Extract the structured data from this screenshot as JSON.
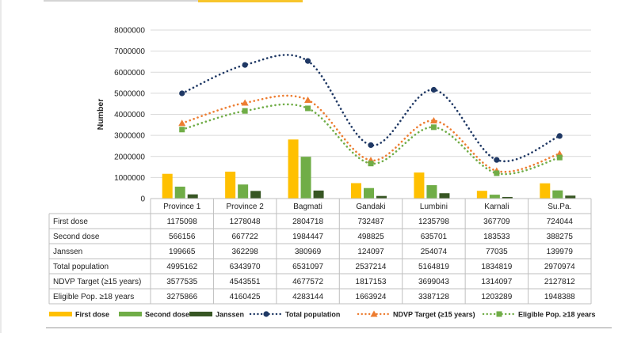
{
  "chart_data": {
    "type": "bar",
    "title": "",
    "xlabel": "",
    "ylabel": "Number",
    "ylim": [
      0,
      8000000
    ],
    "yticks": [
      0,
      1000000,
      2000000,
      3000000,
      4000000,
      5000000,
      6000000,
      7000000,
      8000000
    ],
    "ytick_labels": [
      "0",
      "1000000",
      "2000000",
      "3000000",
      "4000000",
      "5000000",
      "6000000",
      "7000000",
      "8000000"
    ],
    "grid": true,
    "legend_position": "bottom",
    "categories": [
      "Province 1",
      "Province 2",
      "Bagmati",
      "Gandaki",
      "Lumbini",
      "Karnali",
      "Su.Pa."
    ],
    "bar_series": [
      {
        "name": "First dose",
        "color": "#ffc000",
        "values": [
          1175098,
          1278048,
          2804718,
          732487,
          1235798,
          367709,
          724044
        ]
      },
      {
        "name": "Second dose",
        "color": "#70ad47",
        "values": [
          566156,
          667722,
          1984447,
          498825,
          635701,
          183533,
          388275
        ]
      },
      {
        "name": "Janssen",
        "color": "#375623",
        "values": [
          199665,
          362298,
          380969,
          124097,
          254074,
          77035,
          139979
        ]
      }
    ],
    "line_series": [
      {
        "name": "Total population",
        "color": "#1f3864",
        "marker": "circle",
        "values": [
          4995162,
          6343970,
          6531097,
          2537214,
          5164819,
          1834819,
          2970974
        ]
      },
      {
        "name": "NDVP Target  (≥15 years)",
        "color": "#ed7d31",
        "marker": "triangle",
        "values": [
          3577535,
          4543551,
          4677572,
          1817153,
          3699043,
          1314097,
          2127812
        ]
      },
      {
        "name": "Eligible Pop. ≥18 years",
        "color": "#70ad47",
        "marker": "square",
        "values": [
          3275866,
          4160425,
          4283144,
          1663924,
          3387128,
          1203289,
          1948388
        ]
      }
    ],
    "table": {
      "row_labels": [
        "First dose",
        "Second dose",
        "Janssen",
        "Total population",
        "NDVP Target  (≥15 years)",
        "Eligible Pop. ≥18 years"
      ],
      "rows": [
        [
          "1175098",
          "1278048",
          "2804718",
          "732487",
          "1235798",
          "367709",
          "724044"
        ],
        [
          "566156",
          "667722",
          "1984447",
          "498825",
          "635701",
          "183533",
          "388275"
        ],
        [
          "199665",
          "362298",
          "380969",
          "124097",
          "254074",
          "77035",
          "139979"
        ],
        [
          "4995162",
          "6343970",
          "6531097",
          "2537214",
          "5164819",
          "1834819",
          "2970974"
        ],
        [
          "3577535",
          "4543551",
          "4677572",
          "1817153",
          "3699043",
          "1314097",
          "2127812"
        ],
        [
          "3275866",
          "4160425",
          "4283144",
          "1663924",
          "3387128",
          "1203289",
          "1948388"
        ]
      ]
    },
    "legend": [
      {
        "name": "First dose",
        "kind": "bar",
        "color": "#ffc000"
      },
      {
        "name": "Second dose",
        "kind": "bar",
        "color": "#70ad47"
      },
      {
        "name": "Janssen",
        "kind": "bar",
        "color": "#375623"
      },
      {
        "name": "Total population",
        "kind": "line",
        "marker": "circle",
        "color": "#1f3864"
      },
      {
        "name": "NDVP Target  (≥15 years)",
        "kind": "line",
        "marker": "triangle",
        "color": "#ed7d31"
      },
      {
        "name": "Eligible Pop. ≥18 years",
        "kind": "line",
        "marker": "square",
        "color": "#70ad47"
      }
    ]
  }
}
